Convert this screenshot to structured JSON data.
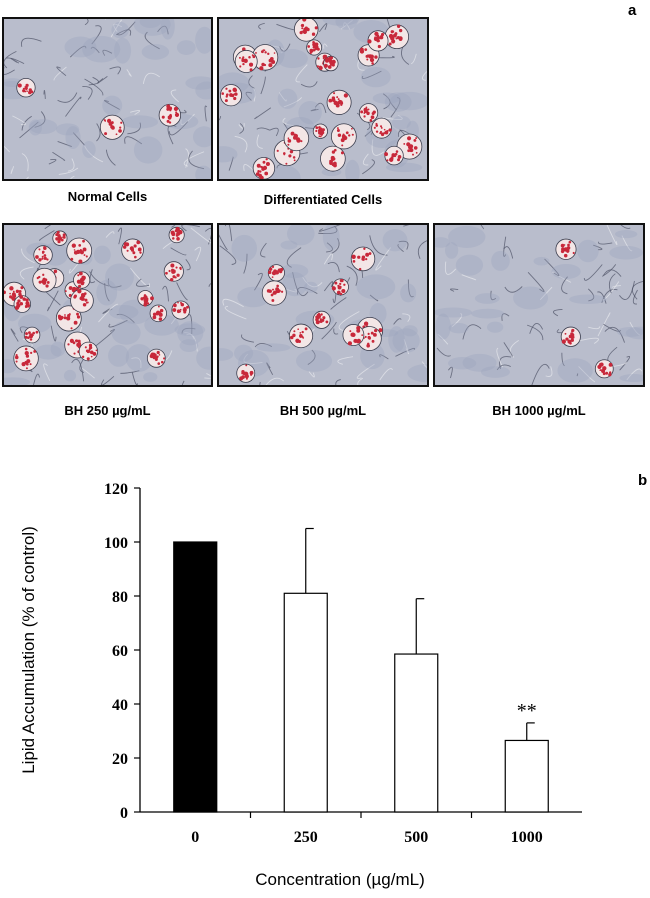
{
  "panels": {
    "a": "a",
    "b": "b"
  },
  "micrographs": [
    {
      "caption": "Normal Cells",
      "stain": "low"
    },
    {
      "caption": "Differentiated Cells",
      "stain": "high"
    },
    {
      "caption": "BH 250 µg/mL",
      "stain": "high"
    },
    {
      "caption": "BH 500 µg/mL",
      "stain": "medium"
    },
    {
      "caption": "BH 1000 µg/mL",
      "stain": "low"
    }
  ],
  "colors": {
    "stain": "#c8283a",
    "tissue": "#9aa3bd",
    "background": "#b9bdcc"
  },
  "chart_data": {
    "type": "bar",
    "categories": [
      "0",
      "250",
      "500",
      "1000"
    ],
    "series": [
      {
        "values": [
          100,
          81,
          58.5,
          26.5
        ],
        "errors": [
          0,
          24,
          20.5,
          6.5
        ],
        "fill": [
          "#000000",
          "#ffffff",
          "#ffffff",
          "#ffffff"
        ]
      }
    ],
    "annotations": [
      {
        "category": "1000",
        "text": "**"
      }
    ],
    "xlabel": "Concentration (µg/mL)",
    "ylabel": "Lipid Accumulation (% of control)",
    "ylim": [
      0,
      120
    ],
    "yticks": [
      "0",
      "20",
      "40",
      "60",
      "80",
      "100",
      "120"
    ],
    "grid": false
  }
}
